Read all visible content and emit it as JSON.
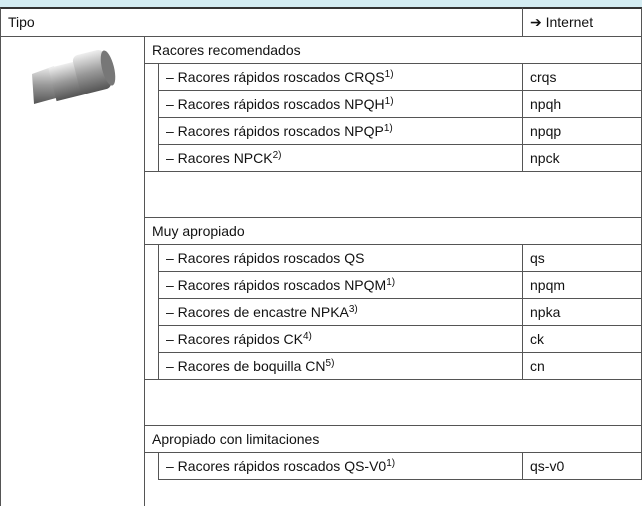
{
  "header": {
    "col1": "Tipo",
    "col2": "➔ Internet"
  },
  "groups": [
    {
      "title": "Racores recomendados",
      "items": [
        {
          "name": "– Racores rápidos roscados CRQS",
          "note": "1)",
          "link": "crqs"
        },
        {
          "name": "– Racores rápidos roscados NPQH",
          "note": "1)",
          "link": "npqh"
        },
        {
          "name": "– Racores rápidos roscados NPQP",
          "note": "1)",
          "link": "npqp"
        },
        {
          "name": "– Racores NPCK",
          "note": "2)",
          "link": "npck"
        }
      ]
    },
    {
      "title": "Muy apropiado",
      "items": [
        {
          "name": "– Racores rápidos roscados QS",
          "link": "qs"
        },
        {
          "name": "– Racores rápidos roscados NPQM",
          "note": "1)",
          "link": "npqm"
        },
        {
          "name": "– Racores de encastre NPKA",
          "note": "3)",
          "link": "npka"
        },
        {
          "name": "– Racores rápidos CK",
          "note": "4)",
          "link": "ck"
        },
        {
          "name": "– Racores de boquilla CN",
          "note": "5)",
          "link": "cn"
        }
      ]
    },
    {
      "title": "Apropiado con limitaciones",
      "items": [
        {
          "name": "– Racores rápidos roscados QS-V0",
          "note": "1)",
          "link": "qs-v0"
        }
      ]
    }
  ]
}
